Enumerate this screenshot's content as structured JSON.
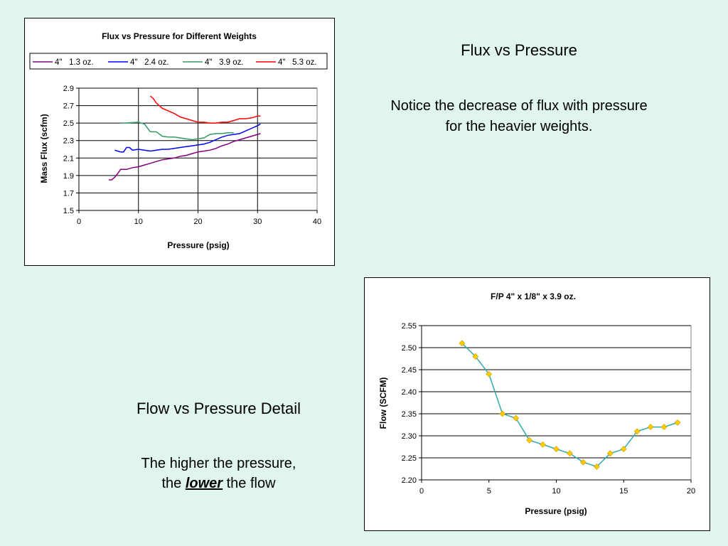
{
  "slide": {
    "title_top": "Flux vs Pressure",
    "notice_line1": "Notice the decrease of flux with pressure",
    "notice_line2": "for the heavier weights.",
    "title_bottom": "Flow vs Pressure Detail",
    "higher_line1": "The higher the pressure,",
    "higher_pre": "the ",
    "higher_emph": "lower",
    "higher_post": " the flow"
  },
  "chart_data": [
    {
      "type": "line",
      "title": "Flux vs Pressure for Different Weights",
      "xlabel": "Pressure (psig)",
      "ylabel": "Mass Flux (scfm)",
      "xlim": [
        0,
        40
      ],
      "ylim": [
        1.5,
        2.9
      ],
      "xticks": [
        0,
        10,
        20,
        30,
        40
      ],
      "yticks": [
        1.5,
        1.7,
        1.9,
        2.1,
        2.3,
        2.5,
        2.7,
        2.9
      ],
      "ytick_labels": [
        "1.5",
        "1.7",
        "1.9",
        "2.1",
        "2.3",
        "2.5",
        "2.7",
        "2.9"
      ],
      "grid": "horizontal",
      "legend_position": "top",
      "series": [
        {
          "name": "4\"   1.3 oz.",
          "color": "#800080",
          "x": [
            5,
            5.5,
            6,
            6.5,
            7,
            8,
            9,
            10,
            11,
            12,
            13,
            14,
            15,
            16,
            17,
            18,
            19,
            20,
            21,
            22,
            23,
            24,
            25,
            26,
            27,
            28,
            29,
            30,
            30.5
          ],
          "y": [
            1.85,
            1.85,
            1.88,
            1.92,
            1.97,
            1.97,
            1.99,
            2.0,
            2.02,
            2.04,
            2.06,
            2.08,
            2.09,
            2.1,
            2.12,
            2.13,
            2.15,
            2.17,
            2.18,
            2.19,
            2.21,
            2.24,
            2.26,
            2.29,
            2.31,
            2.33,
            2.35,
            2.37,
            2.38
          ]
        },
        {
          "name": "4\"   2.4 oz.",
          "color": "#0000ff",
          "x": [
            6,
            6.5,
            7,
            7.5,
            8,
            8.5,
            9,
            10,
            11,
            12,
            13,
            14,
            15,
            16,
            17,
            18,
            19,
            20,
            21,
            22,
            23,
            24,
            25,
            26,
            27,
            28,
            29,
            30,
            30.5
          ],
          "y": [
            2.19,
            2.18,
            2.17,
            2.17,
            2.22,
            2.22,
            2.19,
            2.2,
            2.19,
            2.18,
            2.19,
            2.2,
            2.2,
            2.21,
            2.22,
            2.23,
            2.24,
            2.25,
            2.26,
            2.28,
            2.31,
            2.34,
            2.36,
            2.37,
            2.38,
            2.41,
            2.44,
            2.47,
            2.49
          ]
        },
        {
          "name": "4\"   3.9 oz.",
          "color": "#339966",
          "x": [
            7,
            7.5,
            10,
            10.5,
            11,
            12,
            13,
            14,
            15,
            16,
            17,
            18,
            19,
            20,
            21,
            22,
            23,
            24,
            25,
            26
          ],
          "y": [
            2.5,
            2.5,
            2.51,
            2.5,
            2.49,
            2.4,
            2.4,
            2.35,
            2.34,
            2.34,
            2.33,
            2.32,
            2.31,
            2.32,
            2.33,
            2.37,
            2.38,
            2.38,
            2.39,
            2.39
          ]
        },
        {
          "name": "4\"   5.3 oz.",
          "color": "#ff0000",
          "x": [
            12,
            12.5,
            13,
            13.5,
            14,
            15,
            16,
            17,
            18,
            19,
            20,
            21,
            22,
            23,
            24,
            25,
            26,
            27,
            28,
            29,
            30,
            30.5
          ],
          "y": [
            2.81,
            2.78,
            2.73,
            2.7,
            2.67,
            2.64,
            2.61,
            2.57,
            2.55,
            2.53,
            2.51,
            2.51,
            2.5,
            2.5,
            2.51,
            2.51,
            2.53,
            2.55,
            2.55,
            2.56,
            2.58,
            2.58
          ]
        }
      ]
    },
    {
      "type": "line",
      "title": "F/P 4\" x 1/8\" x 3.9 oz.",
      "xlabel": "Pressure (psig)",
      "ylabel": "Flow (SCFM)",
      "xlim": [
        0,
        20
      ],
      "ylim": [
        2.2,
        2.55
      ],
      "xticks": [
        0,
        5,
        10,
        15,
        20
      ],
      "yticks": [
        2.2,
        2.25,
        2.3,
        2.35,
        2.4,
        2.45,
        2.5,
        2.55
      ],
      "ytick_labels": [
        "2.20",
        "2.25",
        "2.30",
        "2.35",
        "2.40",
        "2.45",
        "2.50",
        "2.55"
      ],
      "grid": "horizontal",
      "line_color": "#33aaaa",
      "marker_color": "#ffcc00",
      "x": [
        3,
        4,
        5,
        6,
        7,
        8,
        9,
        10,
        11,
        12,
        13,
        14,
        15,
        16,
        17,
        18,
        19
      ],
      "y": [
        2.51,
        2.48,
        2.44,
        2.35,
        2.34,
        2.29,
        2.28,
        2.27,
        2.26,
        2.24,
        2.23,
        2.26,
        2.27,
        2.31,
        2.32,
        2.32,
        2.33
      ]
    }
  ]
}
